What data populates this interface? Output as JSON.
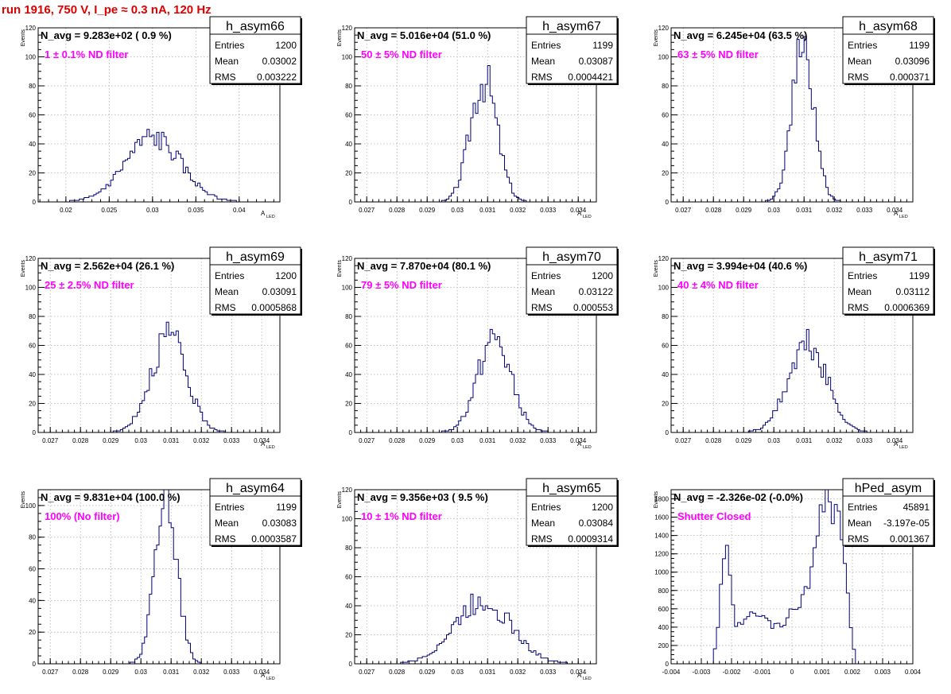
{
  "run_title": "run 1916,   750 V, I_pe ≈ 0.3 nA, 120 Hz",
  "colors": {
    "title": "#e00000",
    "histogram": "#00007a",
    "annotation": "#ff00ff",
    "grid": "#b0b0b0",
    "axis": "#000000"
  },
  "stats_labels": {
    "entries": "Entries",
    "mean": "Mean",
    "rms": "RMS"
  },
  "axis_labels": {
    "y": "Events",
    "x_main": "A",
    "x_sub": "LED"
  },
  "chart_data": [
    {
      "type": "histogram",
      "name": "h_asym66",
      "navg_text": "N_avg = 9.283e+02 ( 0.9 %)",
      "annotation": "1 ± 0.1% ND filter",
      "entries": "1200",
      "mean": "0.03002",
      "rms": "0.003222",
      "xlim": [
        0.0168,
        0.0447
      ],
      "ylim": [
        0,
        120
      ],
      "xticks": [
        0.02,
        0.025,
        0.03,
        0.035,
        0.04
      ],
      "xticklabels": [
        "0.02",
        "0.025",
        "0.03",
        "0.035",
        "0.04"
      ],
      "yticks": [
        0,
        20,
        40,
        60,
        80,
        100,
        120
      ],
      "xminor": 0.001,
      "yminor": 5,
      "show_xlabel": true,
      "grid": true,
      "shape": {
        "mu": 0.03002,
        "sigma": 0.003222,
        "peak": 44,
        "seed": 66
      }
    },
    {
      "type": "histogram",
      "name": "h_asym67",
      "navg_text": "N_avg = 5.016e+04 (51.0 %)",
      "annotation": "50 ± 5% ND filter",
      "entries": "1199",
      "mean": "0.03087",
      "rms": "0.0004421",
      "xlim": [
        0.0266,
        0.0346
      ],
      "ylim": [
        0,
        120
      ],
      "xticks": [
        0.027,
        0.028,
        0.029,
        0.03,
        0.031,
        0.032,
        0.033,
        0.034
      ],
      "xticklabels": [
        "0.027",
        "0.028",
        "0.029",
        "0.03",
        "0.031",
        "0.032",
        "0.033",
        "0.034"
      ],
      "yticks": [
        0,
        20,
        40,
        60,
        80,
        100,
        120
      ],
      "xminor": 0.0002,
      "yminor": 5,
      "show_xlabel": true,
      "grid": true,
      "shape": {
        "mu": 0.03087,
        "sigma": 0.00044,
        "peak": 86,
        "seed": 67
      }
    },
    {
      "type": "histogram",
      "name": "h_asym68",
      "navg_text": "N_avg = 6.245e+04 (63.5 %)",
      "annotation": "63 ± 5% ND filter",
      "entries": "1199",
      "mean": "0.03096",
      "rms": "0.000371",
      "xlim": [
        0.0266,
        0.0346
      ],
      "ylim": [
        0,
        120
      ],
      "xticks": [
        0.027,
        0.028,
        0.029,
        0.03,
        0.031,
        0.032,
        0.033,
        0.034
      ],
      "xticklabels": [
        "0.027",
        "0.028",
        "0.029",
        "0.03",
        "0.031",
        "0.032",
        "0.033",
        "0.034"
      ],
      "yticks": [
        0,
        20,
        40,
        60,
        80,
        100,
        120
      ],
      "xminor": 0.0002,
      "yminor": 5,
      "show_xlabel": true,
      "grid": true,
      "shape": {
        "mu": 0.03096,
        "sigma": 0.00037,
        "peak": 104,
        "seed": 68
      }
    },
    {
      "type": "histogram",
      "name": "h_asym69",
      "navg_text": "N_avg = 2.562e+04 (26.1 %)",
      "annotation": "25 ± 2.5% ND filter",
      "entries": "1200",
      "mean": "0.03091",
      "rms": "0.0005868",
      "xlim": [
        0.0266,
        0.0346
      ],
      "ylim": [
        0,
        120
      ],
      "xticks": [
        0.027,
        0.028,
        0.029,
        0.03,
        0.031,
        0.032,
        0.033,
        0.034
      ],
      "xticklabels": [
        "0.027",
        "0.028",
        "0.029",
        "0.03",
        "0.031",
        "0.032",
        "0.033",
        "0.034"
      ],
      "yticks": [
        0,
        20,
        40,
        60,
        80,
        100,
        120
      ],
      "xminor": 0.0002,
      "yminor": 5,
      "show_xlabel": true,
      "grid": true,
      "shape": {
        "mu": 0.03091,
        "sigma": 0.00059,
        "peak": 66,
        "seed": 69
      }
    },
    {
      "type": "histogram",
      "name": "h_asym70",
      "navg_text": "N_avg = 7.870e+04 (80.1 %)",
      "annotation": "79 ± 5% ND filter",
      "entries": "1200",
      "mean": "0.03122",
      "rms": "0.000553",
      "xlim": [
        0.0266,
        0.0346
      ],
      "ylim": [
        0,
        120
      ],
      "xticks": [
        0.027,
        0.028,
        0.029,
        0.03,
        0.031,
        0.032,
        0.033,
        0.034
      ],
      "xticklabels": [
        "0.027",
        "0.028",
        "0.029",
        "0.03",
        "0.031",
        "0.032",
        "0.033",
        "0.034"
      ],
      "yticks": [
        0,
        20,
        40,
        60,
        80,
        100,
        120
      ],
      "xminor": 0.0002,
      "yminor": 5,
      "show_xlabel": true,
      "grid": true,
      "shape": {
        "mu": 0.03122,
        "sigma": 0.00055,
        "peak": 64,
        "seed": 70
      }
    },
    {
      "type": "histogram",
      "name": "h_asym71",
      "navg_text": "N_avg = 3.994e+04 (40.6 %)",
      "annotation": "40 ± 4% ND filter",
      "entries": "1199",
      "mean": "0.03112",
      "rms": "0.0006369",
      "xlim": [
        0.0266,
        0.0346
      ],
      "ylim": [
        0,
        120
      ],
      "xticks": [
        0.027,
        0.028,
        0.029,
        0.03,
        0.031,
        0.032,
        0.033,
        0.034
      ],
      "xticklabels": [
        "0.027",
        "0.028",
        "0.029",
        "0.03",
        "0.031",
        "0.032",
        "0.033",
        "0.034"
      ],
      "yticks": [
        0,
        20,
        40,
        60,
        80,
        100,
        120
      ],
      "xminor": 0.0002,
      "yminor": 5,
      "show_xlabel": true,
      "grid": true,
      "shape": {
        "mu": 0.03112,
        "sigma": 0.00064,
        "peak": 60,
        "seed": 71
      }
    },
    {
      "type": "histogram",
      "name": "h_asym64",
      "navg_text": "N_avg = 9.831e+04 (100.0 %)",
      "annotation": "100% (No filter)",
      "entries": "1199",
      "mean": "0.03083",
      "rms": "0.0003587",
      "xlim": [
        0.0266,
        0.0346
      ],
      "ylim": [
        0,
        110
      ],
      "xticks": [
        0.027,
        0.028,
        0.029,
        0.03,
        0.031,
        0.032,
        0.033,
        0.034
      ],
      "xticklabels": [
        "0.027",
        "0.028",
        "0.029",
        "0.03",
        "0.031",
        "0.032",
        "0.033",
        "0.034"
      ],
      "yticks": [
        0,
        20,
        40,
        60,
        80,
        100
      ],
      "xminor": 0.0002,
      "yminor": 5,
      "show_xlabel": true,
      "grid": true,
      "shape": {
        "mu": 0.03083,
        "sigma": 0.00036,
        "peak": 108,
        "seed": 64
      }
    },
    {
      "type": "histogram",
      "name": "h_asym65",
      "navg_text": "N_avg = 9.356e+03 ( 9.5 %)",
      "annotation": "10 ± 1% ND filter",
      "entries": "1200",
      "mean": "0.03084",
      "rms": "0.0009314",
      "xlim": [
        0.0266,
        0.0346
      ],
      "ylim": [
        0,
        120
      ],
      "xticks": [
        0.027,
        0.028,
        0.029,
        0.03,
        0.031,
        0.032,
        0.033,
        0.034
      ],
      "xticklabels": [
        "0.027",
        "0.028",
        "0.029",
        "0.03",
        "0.031",
        "0.032",
        "0.033",
        "0.034"
      ],
      "yticks": [
        0,
        20,
        40,
        60,
        80,
        100,
        120
      ],
      "xminor": 0.0002,
      "yminor": 5,
      "show_xlabel": true,
      "grid": true,
      "shape": {
        "mu": 0.03084,
        "sigma": 0.00093,
        "peak": 44,
        "seed": 65
      }
    },
    {
      "type": "histogram",
      "name": "hPed_asym",
      "navg_text": "N_avg = -2.326e-02 (-0.0%)",
      "annotation": "Shutter Closed",
      "entries": "45891",
      "mean": "-3.197e-05",
      "rms": "0.001367",
      "xlim": [
        -0.004,
        0.004
      ],
      "ylim": [
        0,
        1900
      ],
      "xticks": [
        -0.004,
        -0.003,
        -0.002,
        -0.001,
        0,
        0.001,
        0.002,
        0.003,
        0.004
      ],
      "xticklabels": [
        "-0.004",
        "-0.003",
        "-0.002",
        "-0.001",
        "0",
        "0.001",
        "0.002",
        "0.003",
        "0.004"
      ],
      "yticks": [
        0,
        200,
        400,
        600,
        800,
        1000,
        1200,
        1400,
        1600,
        1800
      ],
      "xminor": 0.0002,
      "yminor": 50,
      "show_xlabel": false,
      "grid": true,
      "shape": {
        "ped": true,
        "seed": 99
      }
    }
  ]
}
